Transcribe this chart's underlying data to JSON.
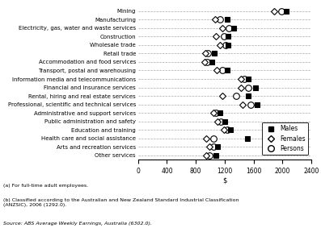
{
  "categories": [
    "Mining",
    "Manufacturing",
    "Electricity, gas, water and waste services",
    "Construction",
    "Wholesale trade",
    "Retail trade",
    "Accommodation and food services",
    "Transport, postal and warehousing",
    "Information media and telecommunications",
    "Financial and insurance services",
    "Rental, hiring and real estate services",
    "Professional, scientific and technical services",
    "Administrative and support services",
    "Public administration and safety",
    "Education and training",
    "Health care and social assistance",
    "Arts and recreation services",
    "Other services"
  ],
  "males": [
    2050,
    1230,
    1320,
    1250,
    1250,
    1050,
    1020,
    1230,
    1530,
    1630,
    1530,
    1650,
    1130,
    1200,
    1280,
    1520,
    1100,
    1080
  ],
  "females": [
    1880,
    1070,
    1170,
    1080,
    1130,
    930,
    920,
    1090,
    1430,
    1420,
    1170,
    1450,
    1040,
    1100,
    1190,
    940,
    990,
    940
  ],
  "persons": [
    1980,
    1130,
    1260,
    1190,
    1210,
    970,
    960,
    1170,
    1470,
    1530,
    1360,
    1560,
    1080,
    1150,
    1240,
    1040,
    1040,
    990
  ],
  "xlabel": "$",
  "xlim": [
    0,
    2400
  ],
  "xticks": [
    0,
    400,
    800,
    1200,
    1600,
    2000,
    2400
  ],
  "footnote1": "(a) For full-time adult employees.",
  "footnote2": "(b) Classified according to the Australian and New Zealand Standard Industrial Classification\n(ANZSIC), 2006 (1292.0).",
  "source": "Source: ABS Average Weekly Earnings, Australia (6302.0).",
  "bg_color": "#ffffff",
  "grid_color": "#aaaaaa"
}
